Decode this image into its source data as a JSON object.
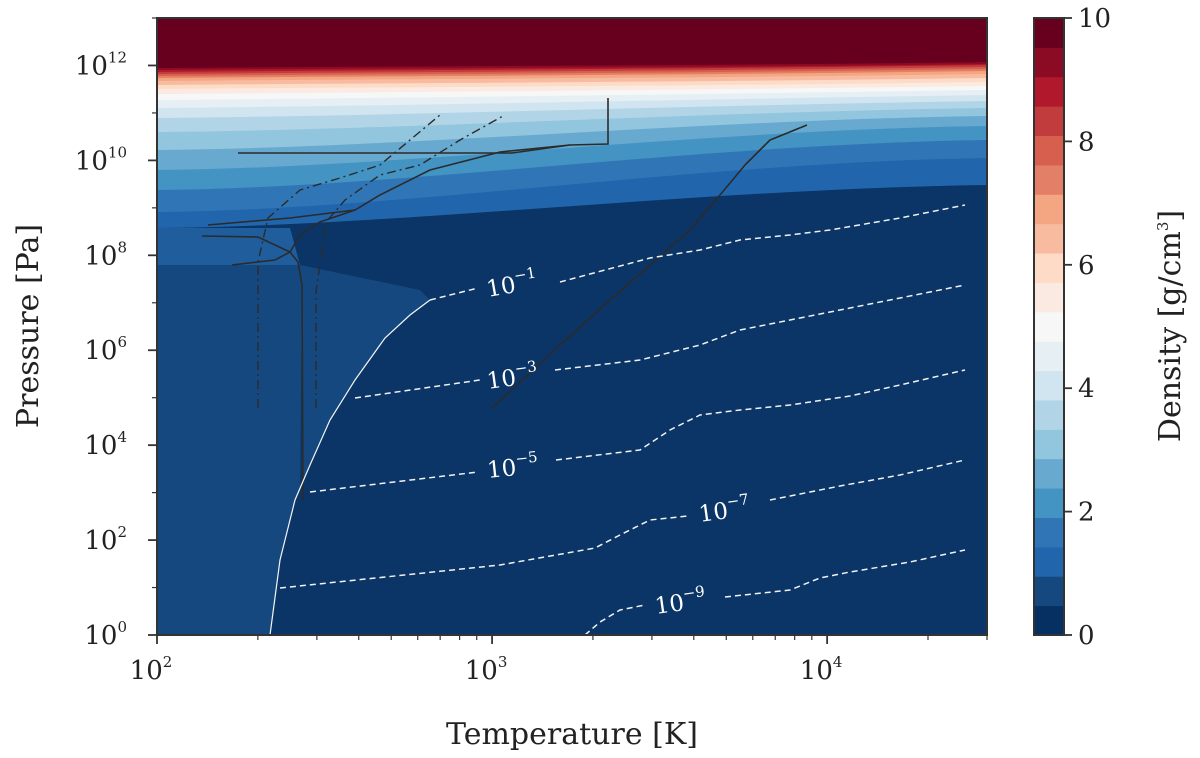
{
  "chart_data": {
    "type": "heatmap",
    "xlabel": "Temperature [K]",
    "ylabel": "Pressure [Pa]",
    "xscale": "log",
    "yscale": "log",
    "xlim": [
      100,
      30000
    ],
    "ylim": [
      1,
      10000000000000
    ],
    "grid": false,
    "x_ticks": [
      {
        "value": 100,
        "base": "10",
        "exp": "2"
      },
      {
        "value": 1000,
        "base": "10",
        "exp": "3"
      },
      {
        "value": 10000,
        "base": "10",
        "exp": "4"
      }
    ],
    "y_ticks": [
      {
        "value": 1,
        "base": "10",
        "exp": "0"
      },
      {
        "value": 100,
        "base": "10",
        "exp": "2"
      },
      {
        "value": 10000,
        "base": "10",
        "exp": "4"
      },
      {
        "value": 1000000,
        "base": "10",
        "exp": "6"
      },
      {
        "value": 100000000,
        "base": "10",
        "exp": "8"
      },
      {
        "value": 10000000000,
        "base": "10",
        "exp": "10"
      },
      {
        "value": 1000000000000,
        "base": "10",
        "exp": "12"
      }
    ],
    "colorbar": {
      "label": "Density [g/cm",
      "label_sup": "3",
      "label_end": "]",
      "range": [
        0,
        10
      ],
      "ticks": [
        "0",
        "2",
        "4",
        "6",
        "8",
        "10"
      ],
      "levels": 20,
      "colormap": "RdBu_r",
      "colors": [
        "#053061",
        "#15487f",
        "#2166ac",
        "#3076b7",
        "#4393c3",
        "#67a9cf",
        "#92c5de",
        "#b1d5e7",
        "#d1e5f0",
        "#e6eff4",
        "#f7f7f7",
        "#faeae1",
        "#fddbc7",
        "#f8bba0",
        "#f4a582",
        "#e27f66",
        "#d6604d",
        "#c13d3d",
        "#b2182b",
        "#8b0b25",
        "#67001f"
      ]
    },
    "contour_labels": [
      {
        "base": "10",
        "exp": "−1"
      },
      {
        "base": "10",
        "exp": "−3"
      },
      {
        "base": "10",
        "exp": "−5"
      },
      {
        "base": "10",
        "exp": "−7"
      },
      {
        "base": "10",
        "exp": "−9"
      }
    ]
  }
}
